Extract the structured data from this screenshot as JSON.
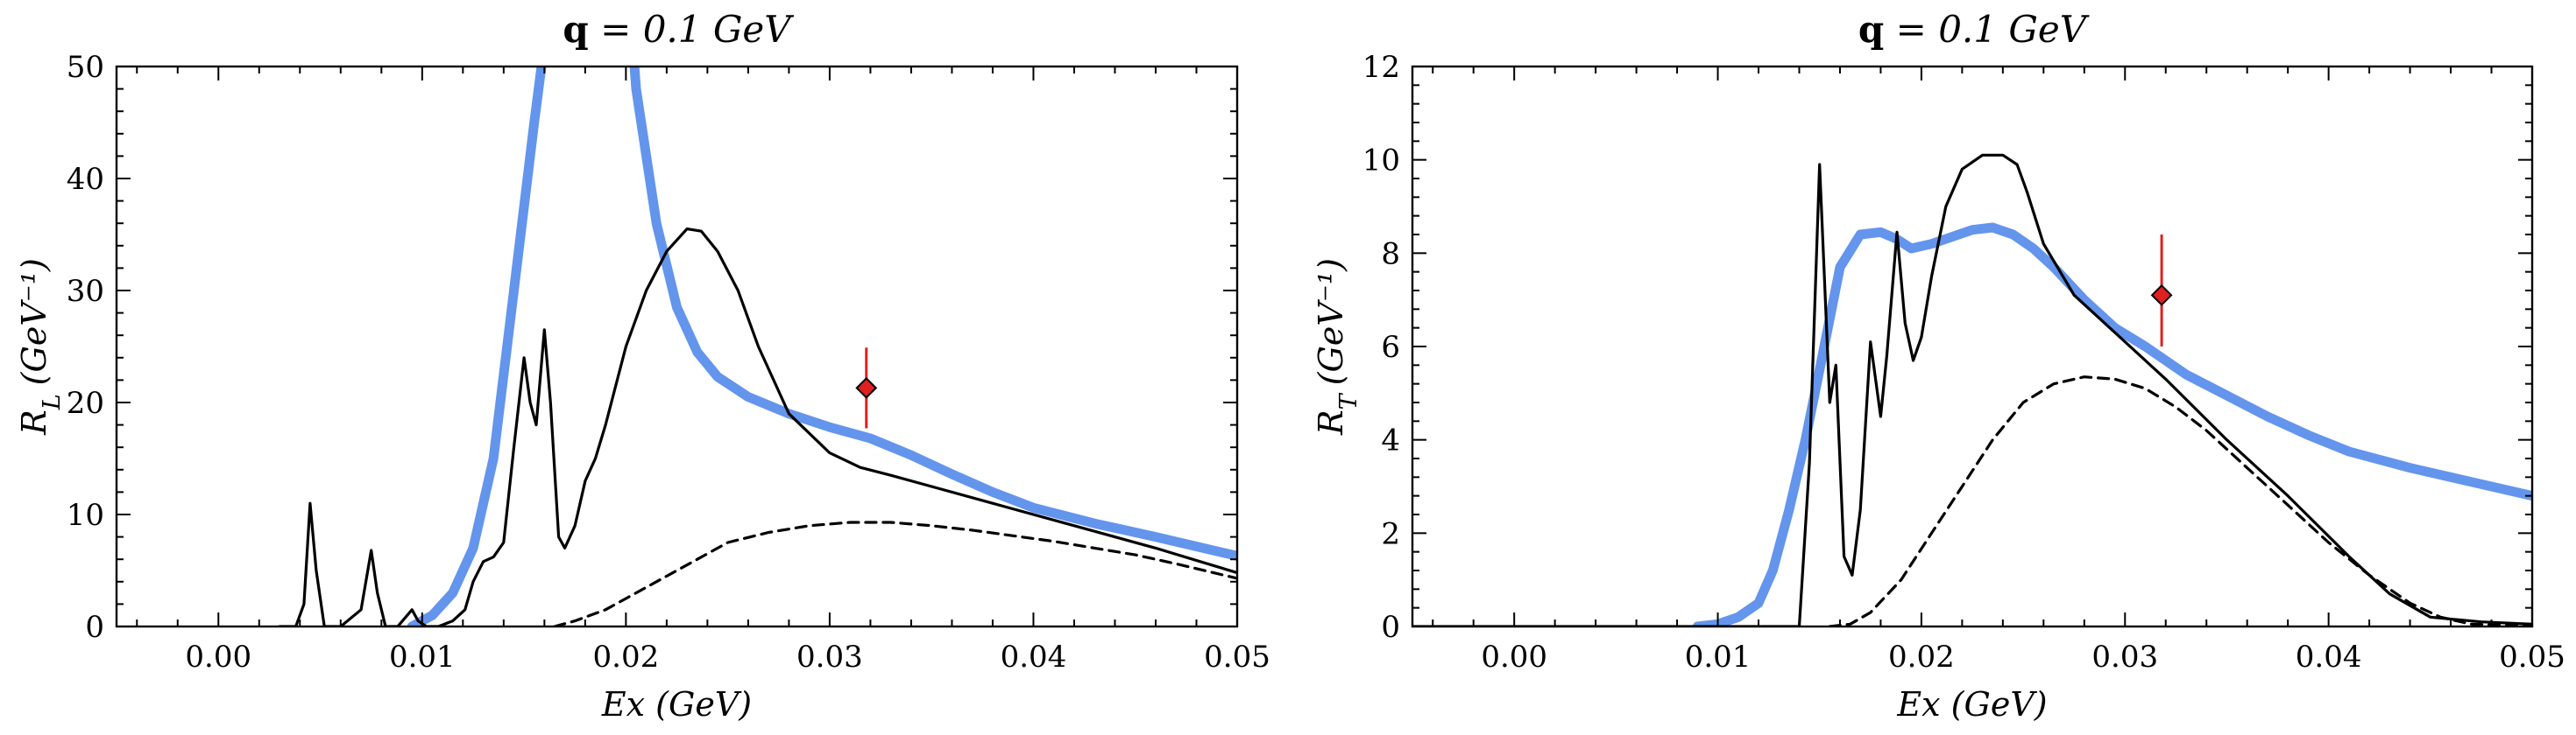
{
  "chart_data": [
    {
      "type": "line",
      "title": "q = 0.1 GeV",
      "title_bold": "q",
      "title_rest": " = 0.1 GeV",
      "xlabel": "Ex (GeV)",
      "ylabel": "R_L (GeV⁻¹)",
      "xlim": [
        -0.005,
        0.05
      ],
      "ylim": [
        0,
        50
      ],
      "xticks": [
        0.0,
        0.01,
        0.02,
        0.03,
        0.04,
        0.05
      ],
      "xtick_labels": [
        "0.00",
        "0.01",
        "0.02",
        "0.03",
        "0.04",
        "0.05"
      ],
      "yticks": [
        0,
        10,
        20,
        30,
        40,
        50
      ],
      "ytick_labels": [
        "0",
        "10",
        "20",
        "30",
        "40",
        "50"
      ],
      "grid": false,
      "series": [
        {
          "style": "thick-blue",
          "color": "#6495ED",
          "x": [
            0.0095,
            0.0105,
            0.0115,
            0.0125,
            0.0135,
            0.0145,
            0.0155,
            0.016,
            0.0165,
            0.02,
            0.0205,
            0.0215,
            0.0225,
            0.0235,
            0.0245,
            0.026,
            0.028,
            0.03,
            0.032,
            0.034,
            0.036,
            0.038,
            0.04,
            0.043,
            0.046,
            0.05
          ],
          "y": [
            0,
            1,
            3,
            7,
            15,
            30,
            45,
            52,
            60,
            60,
            48,
            36,
            28.5,
            24.5,
            22.3,
            20.5,
            19,
            17.8,
            16.8,
            15.3,
            13.6,
            12,
            10.6,
            9.2,
            8,
            6.3
          ]
        },
        {
          "style": "solid-black",
          "color": "#000000",
          "x": [
            0.003,
            0.0038,
            0.0042,
            0.0045,
            0.0048,
            0.0052,
            0.006,
            0.007,
            0.0075,
            0.0078,
            0.0082,
            0.0088,
            0.0095,
            0.0098,
            0.0102,
            0.0108,
            0.0115,
            0.0121,
            0.0125,
            0.013,
            0.0135,
            0.014,
            0.0145,
            0.015,
            0.0153,
            0.0156,
            0.016,
            0.0163,
            0.0167,
            0.017,
            0.0175,
            0.018,
            0.0185,
            0.019,
            0.02,
            0.021,
            0.022,
            0.023,
            0.0237,
            0.0245,
            0.0255,
            0.0265,
            0.028,
            0.03,
            0.0315,
            0.033,
            0.035,
            0.038,
            0.042,
            0.046,
            0.05
          ],
          "y": [
            0,
            0,
            2,
            11,
            5,
            0,
            0,
            1.5,
            6.8,
            3,
            0,
            0,
            1.5,
            0.5,
            0,
            0,
            0.5,
            1.5,
            4,
            5.8,
            6.2,
            7.5,
            16,
            24,
            20,
            18,
            26.5,
            20,
            8,
            7,
            9,
            13,
            15,
            18,
            25,
            30,
            33.5,
            35.5,
            35.3,
            33.5,
            30,
            25,
            19,
            15.5,
            14.2,
            13.5,
            12.5,
            11,
            9,
            7,
            4.8
          ]
        },
        {
          "style": "dashed-black",
          "color": "#000000",
          "x": [
            0.0165,
            0.0175,
            0.019,
            0.0205,
            0.022,
            0.0235,
            0.025,
            0.027,
            0.029,
            0.031,
            0.033,
            0.035,
            0.037,
            0.039,
            0.041,
            0.043,
            0.045,
            0.047,
            0.05
          ],
          "y": [
            0,
            0.5,
            1.5,
            3,
            4.5,
            6,
            7.5,
            8.4,
            9,
            9.3,
            9.3,
            9,
            8.6,
            8.1,
            7.6,
            7,
            6.4,
            5.6,
            4.3
          ]
        }
      ],
      "markers": [
        {
          "x": 0.0318,
          "y": 21.3,
          "yerr": [
            3.6,
            3.6
          ],
          "color": "#e02020",
          "shape": "diamond"
        }
      ]
    },
    {
      "type": "line",
      "title": "q = 0.1 GeV",
      "title_bold": "q",
      "title_rest": " = 0.1 GeV",
      "xlabel": "Ex (GeV)",
      "ylabel": "R_T (GeV⁻¹)",
      "xlim": [
        -0.005,
        0.05
      ],
      "ylim": [
        0,
        12
      ],
      "xticks": [
        0.0,
        0.01,
        0.02,
        0.03,
        0.04,
        0.05
      ],
      "xtick_labels": [
        "0.00",
        "0.01",
        "0.02",
        "0.03",
        "0.04",
        "0.05"
      ],
      "yticks": [
        0,
        2,
        4,
        6,
        8,
        10,
        12
      ],
      "ytick_labels": [
        "0",
        "2",
        "4",
        "6",
        "8",
        "10",
        "12"
      ],
      "grid": false,
      "series": [
        {
          "style": "thick-blue",
          "color": "#6495ED",
          "x": [
            0.009,
            0.01,
            0.011,
            0.012,
            0.0127,
            0.0135,
            0.0143,
            0.015,
            0.016,
            0.017,
            0.018,
            0.0188,
            0.0195,
            0.0205,
            0.0215,
            0.0225,
            0.0235,
            0.0245,
            0.0255,
            0.0265,
            0.028,
            0.0295,
            0.031,
            0.033,
            0.035,
            0.037,
            0.039,
            0.041,
            0.044,
            0.047,
            0.05
          ],
          "y": [
            0,
            0.05,
            0.2,
            0.5,
            1.2,
            2.5,
            4,
            5.5,
            7.7,
            8.4,
            8.45,
            8.3,
            8.1,
            8.2,
            8.35,
            8.5,
            8.55,
            8.4,
            8.1,
            7.7,
            7,
            6.4,
            6,
            5.4,
            4.95,
            4.5,
            4.1,
            3.75,
            3.4,
            3.1,
            2.8
          ]
        },
        {
          "style": "solid-black",
          "color": "#000000",
          "x": [
            -0.005,
            0.014,
            0.0145,
            0.015,
            0.0155,
            0.0158,
            0.0162,
            0.0166,
            0.017,
            0.0175,
            0.018,
            0.0183,
            0.0188,
            0.0192,
            0.0196,
            0.02,
            0.0205,
            0.0212,
            0.022,
            0.023,
            0.024,
            0.0247,
            0.0252,
            0.026,
            0.0275,
            0.0295,
            0.032,
            0.035,
            0.038,
            0.041,
            0.043,
            0.045,
            0.0475,
            0.05
          ],
          "y": [
            0,
            0,
            3.5,
            9.9,
            4.8,
            5.6,
            1.5,
            1.1,
            2.5,
            6.1,
            4.5,
            5.8,
            8.45,
            6.5,
            5.7,
            6.2,
            7.5,
            9,
            9.8,
            10.1,
            10.1,
            9.9,
            9.3,
            8.2,
            7.1,
            6.3,
            5.3,
            4,
            2.8,
            1.5,
            0.7,
            0.2,
            0.1,
            0.05
          ]
        },
        {
          "style": "dashed-black",
          "color": "#000000",
          "x": [
            0.0155,
            0.0165,
            0.0175,
            0.019,
            0.0205,
            0.022,
            0.0235,
            0.025,
            0.0265,
            0.028,
            0.0295,
            0.031,
            0.0325,
            0.034,
            0.036,
            0.038,
            0.04,
            0.042,
            0.044,
            0.0455,
            0.047,
            0.05
          ],
          "y": [
            0,
            0.05,
            0.3,
            1,
            2,
            3,
            4,
            4.8,
            5.2,
            5.35,
            5.3,
            5.1,
            4.7,
            4.2,
            3.4,
            2.6,
            1.8,
            1.1,
            0.5,
            0.2,
            0.05,
            0.0
          ]
        }
      ],
      "markers": [
        {
          "x": 0.0318,
          "y": 7.1,
          "yerr": [
            1.1,
            1.3
          ],
          "color": "#e02020",
          "shape": "diamond"
        }
      ]
    }
  ]
}
